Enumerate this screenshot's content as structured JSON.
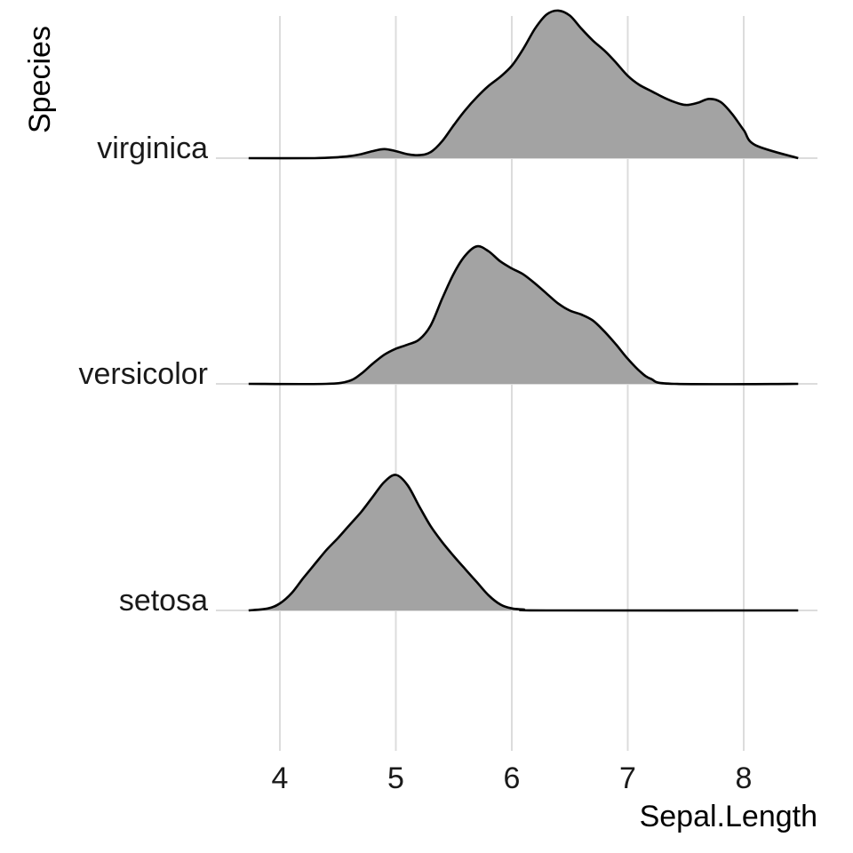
{
  "chart_data": {
    "type": "area",
    "subtype": "ridgeline-density",
    "title": "",
    "xlabel": "Sepal.Length",
    "ylabel": "Species",
    "x_ticks": [
      4,
      5,
      6,
      7,
      8
    ],
    "x_range": [
      3.73,
      8.47
    ],
    "grid": true,
    "legend": "none",
    "fill_color": "#a3a3a3",
    "outline_color": "#000000",
    "grid_color": "#dcdcdc",
    "categories": [
      "setosa",
      "versicolor",
      "virginica"
    ],
    "series": [
      {
        "name": "setosa",
        "x": [
          3.73,
          3.9,
          4.0,
          4.1,
          4.2,
          4.3,
          4.4,
          4.5,
          4.6,
          4.7,
          4.8,
          4.9,
          5.0,
          5.1,
          5.2,
          5.3,
          5.4,
          5.5,
          5.6,
          5.7,
          5.8,
          5.9,
          6.0,
          6.1,
          6.3,
          8.47
        ],
        "density": [
          0.0,
          0.02,
          0.07,
          0.17,
          0.32,
          0.46,
          0.6,
          0.72,
          0.85,
          0.98,
          1.13,
          1.28,
          1.35,
          1.25,
          1.04,
          0.84,
          0.68,
          0.54,
          0.41,
          0.28,
          0.15,
          0.06,
          0.02,
          0.01,
          0.0,
          0.0
        ]
      },
      {
        "name": "versicolor",
        "x": [
          3.73,
          4.4,
          4.6,
          4.7,
          4.8,
          4.9,
          5.0,
          5.1,
          5.2,
          5.3,
          5.4,
          5.5,
          5.6,
          5.7,
          5.8,
          5.9,
          6.0,
          6.1,
          6.2,
          6.3,
          6.4,
          6.5,
          6.6,
          6.7,
          6.8,
          6.9,
          7.0,
          7.1,
          7.2,
          7.4,
          8.47
        ],
        "density": [
          0.0,
          0.0,
          0.03,
          0.1,
          0.2,
          0.29,
          0.35,
          0.39,
          0.44,
          0.58,
          0.85,
          1.1,
          1.28,
          1.37,
          1.32,
          1.22,
          1.15,
          1.09,
          1.0,
          0.9,
          0.8,
          0.73,
          0.69,
          0.63,
          0.52,
          0.39,
          0.25,
          0.13,
          0.05,
          0.0,
          0.0
        ]
      },
      {
        "name": "virginica",
        "x": [
          3.73,
          4.3,
          4.5,
          4.6,
          4.7,
          4.8,
          4.9,
          5.0,
          5.1,
          5.2,
          5.3,
          5.4,
          5.5,
          5.6,
          5.7,
          5.8,
          5.9,
          6.0,
          6.1,
          6.2,
          6.3,
          6.4,
          6.5,
          6.6,
          6.7,
          6.8,
          6.9,
          7.0,
          7.1,
          7.2,
          7.3,
          7.4,
          7.5,
          7.6,
          7.7,
          7.8,
          7.9,
          8.0,
          8.1,
          8.47
        ],
        "density": [
          0.0,
          0.0,
          0.01,
          0.02,
          0.04,
          0.07,
          0.09,
          0.07,
          0.04,
          0.03,
          0.06,
          0.17,
          0.33,
          0.48,
          0.61,
          0.72,
          0.81,
          0.92,
          1.09,
          1.29,
          1.43,
          1.47,
          1.42,
          1.29,
          1.17,
          1.07,
          0.95,
          0.82,
          0.73,
          0.67,
          0.61,
          0.56,
          0.53,
          0.55,
          0.59,
          0.56,
          0.44,
          0.28,
          0.13,
          0.0
        ]
      }
    ]
  }
}
